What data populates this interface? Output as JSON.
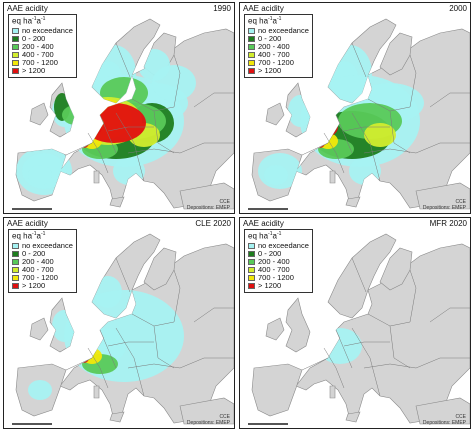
{
  "colors": {
    "land": "#d4d4d4",
    "sea": "#ffffff",
    "border": "#7a7a7a",
    "no_exceedance": "#a6f2f2",
    "c0_200": "#1e7d1e",
    "c200_400": "#58c958",
    "c400_700": "#d2ed2e",
    "c700_1200": "#f2e80a",
    "c1200plus": "#e01010"
  },
  "legend": {
    "unit_base": "eq ha",
    "items": [
      {
        "label": "no exceedance",
        "color_key": "no_exceedance"
      },
      {
        "label": "0 - 200",
        "color_key": "c0_200"
      },
      {
        "label": "200 - 400",
        "color_key": "c200_400"
      },
      {
        "label": "400 - 700",
        "color_key": "c400_700"
      },
      {
        "label": "700 - 1200",
        "color_key": "c700_1200"
      },
      {
        "label": "> 1200",
        "color_key": "c1200plus"
      }
    ]
  },
  "credit": {
    "line1": "CCE",
    "line2": "Depositions: EMEP"
  },
  "panels": [
    {
      "id": "p1990",
      "title": "AAE acidity",
      "label": "1990",
      "severity": 3
    },
    {
      "id": "p2000",
      "title": "AAE acidity",
      "label": "2000",
      "severity": 2
    },
    {
      "id": "pcle",
      "title": "AAE acidity",
      "label": "CLE 2020",
      "severity": 1
    },
    {
      "id": "pmfr",
      "title": "AAE acidity",
      "label": "MFR 2020",
      "severity": 0
    }
  ]
}
